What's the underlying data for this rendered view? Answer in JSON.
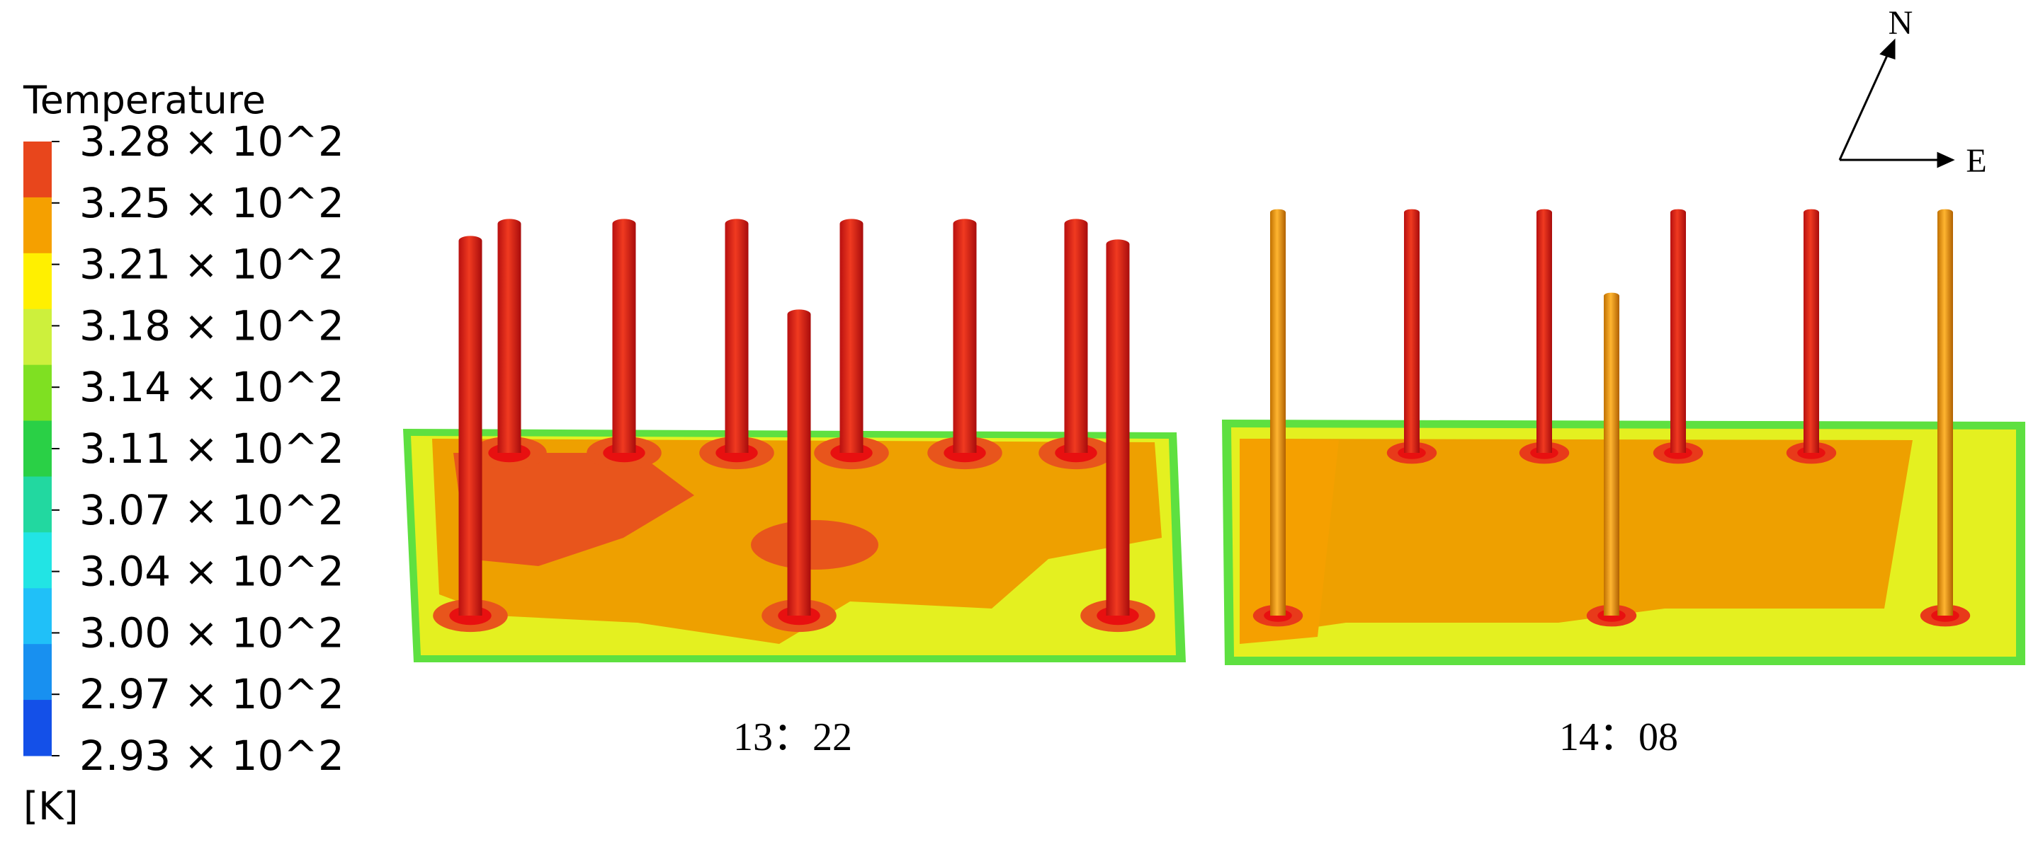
{
  "legend": {
    "title": "Temperature",
    "labels": [
      "3.28 × 10^2",
      "3.25 × 10^2",
      "3.21 × 10^2",
      "3.18 × 10^2",
      "3.14 × 10^2",
      "3.11 × 10^2",
      "3.07 × 10^2",
      "3.04 × 10^2",
      "3.00 × 10^2",
      "2.97 × 10^2",
      "2.93 × 10^2"
    ],
    "colors": [
      "#e8461c",
      "#f5a000",
      "#fff000",
      "#cdf03c",
      "#7fe022",
      "#2ad046",
      "#22d8a0",
      "#22e4e4",
      "#20c0f8",
      "#1890f0",
      "#1450e8"
    ],
    "unit": "[K]"
  },
  "panels": [
    {
      "label": "13：22"
    },
    {
      "label": "14：08"
    }
  ],
  "compass": {
    "north": "N",
    "east": "E"
  }
}
